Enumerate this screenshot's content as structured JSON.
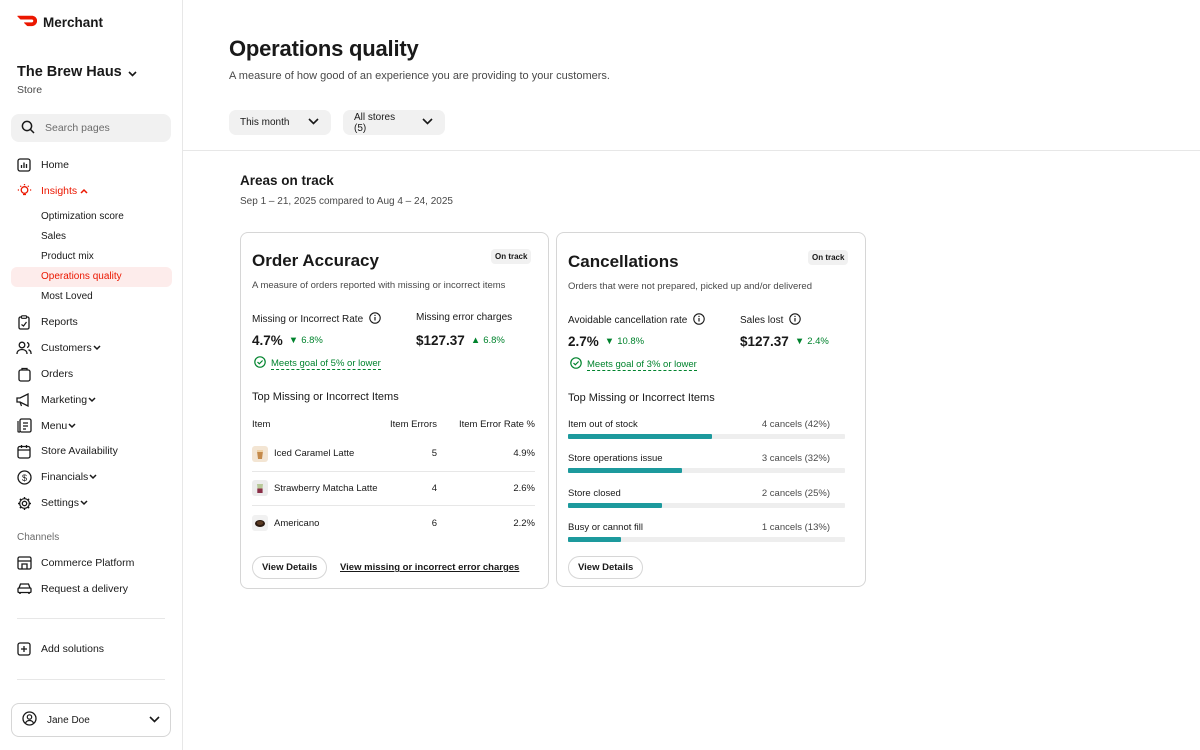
{
  "brand": {
    "name": "Merchant",
    "accent": "#eb1700"
  },
  "store": {
    "name": "The Brew Haus",
    "subtitle": "Store"
  },
  "search": {
    "placeholder": "Search pages"
  },
  "nav": {
    "home": "Home",
    "insights": "Insights",
    "insights_sub": [
      "Optimization score",
      "Sales",
      "Product mix",
      "Operations quality",
      "Most Loved"
    ],
    "reports": "Reports",
    "customers": "Customers",
    "orders": "Orders",
    "marketing": "Marketing",
    "menu": "Menu",
    "store_availability": "Store Availability",
    "financials": "Financials",
    "settings": "Settings"
  },
  "channels": {
    "label": "Channels",
    "commerce": "Commerce Platform",
    "delivery": "Request a delivery"
  },
  "add_solutions": "Add solutions",
  "user": {
    "name": "Jane Doe"
  },
  "page": {
    "title": "Operations quality",
    "subtitle": "A measure of how good of an experience you are providing to your customers.",
    "filters": {
      "period": "This month",
      "stores": "All stores (5)"
    },
    "section_title": "Areas on track",
    "section_date": "Sep 1 – 21, 2025 compared to Aug 4 – 24, 2025"
  },
  "accuracy": {
    "title": "Order Accuracy",
    "badge": "On track",
    "desc": "A measure of orders reported with missing or incorrect items",
    "m1_label": "Missing or Incorrect Rate",
    "m1_value": "4.7%",
    "m1_delta": "6.8%",
    "m2_label": "Missing error charges",
    "m2_value": "$127.37",
    "m2_delta": "6.8%",
    "goal": "Meets goal of 5% or lower",
    "list_title": "Top Missing or Incorrect Items",
    "headers": {
      "item": "Item",
      "errors": "Item Errors",
      "rate": "Item Error Rate %"
    },
    "rows": [
      {
        "item": "Iced Caramel Latte",
        "errors": "5",
        "rate": "4.9%"
      },
      {
        "item": "Strawberry Matcha Latte",
        "errors": "4",
        "rate": "2.6%"
      },
      {
        "item": "Americano",
        "errors": "6",
        "rate": "2.2%"
      }
    ],
    "btn": "View Details",
    "link": "View missing or incorrect error charges"
  },
  "cancel": {
    "title": "Cancellations",
    "badge": "On track",
    "desc": "Orders that were not prepared, picked up and/or delivered",
    "m1_label": "Avoidable cancellation rate",
    "m1_value": "2.7%",
    "m1_delta": "10.8%",
    "m2_label": "Sales lost",
    "m2_value": "$127.37",
    "m2_delta": "2.4%",
    "goal": "Meets goal of 3% or lower",
    "list_title": "Top Missing or Incorrect Items",
    "reasons": [
      {
        "label": "Item out of stock",
        "value": "4 cancels (42%)",
        "pct": 0.52
      },
      {
        "label": "Store operations issue",
        "value": "3 cancels (32%)",
        "pct": 0.41
      },
      {
        "label": "Store closed",
        "value": "2 cancels (25%)",
        "pct": 0.34
      },
      {
        "label": "Busy or cannot fill",
        "value": "1 cancels (13%)",
        "pct": 0.19
      }
    ],
    "btn": "View Details",
    "bar_color": "#1d9a9d"
  }
}
